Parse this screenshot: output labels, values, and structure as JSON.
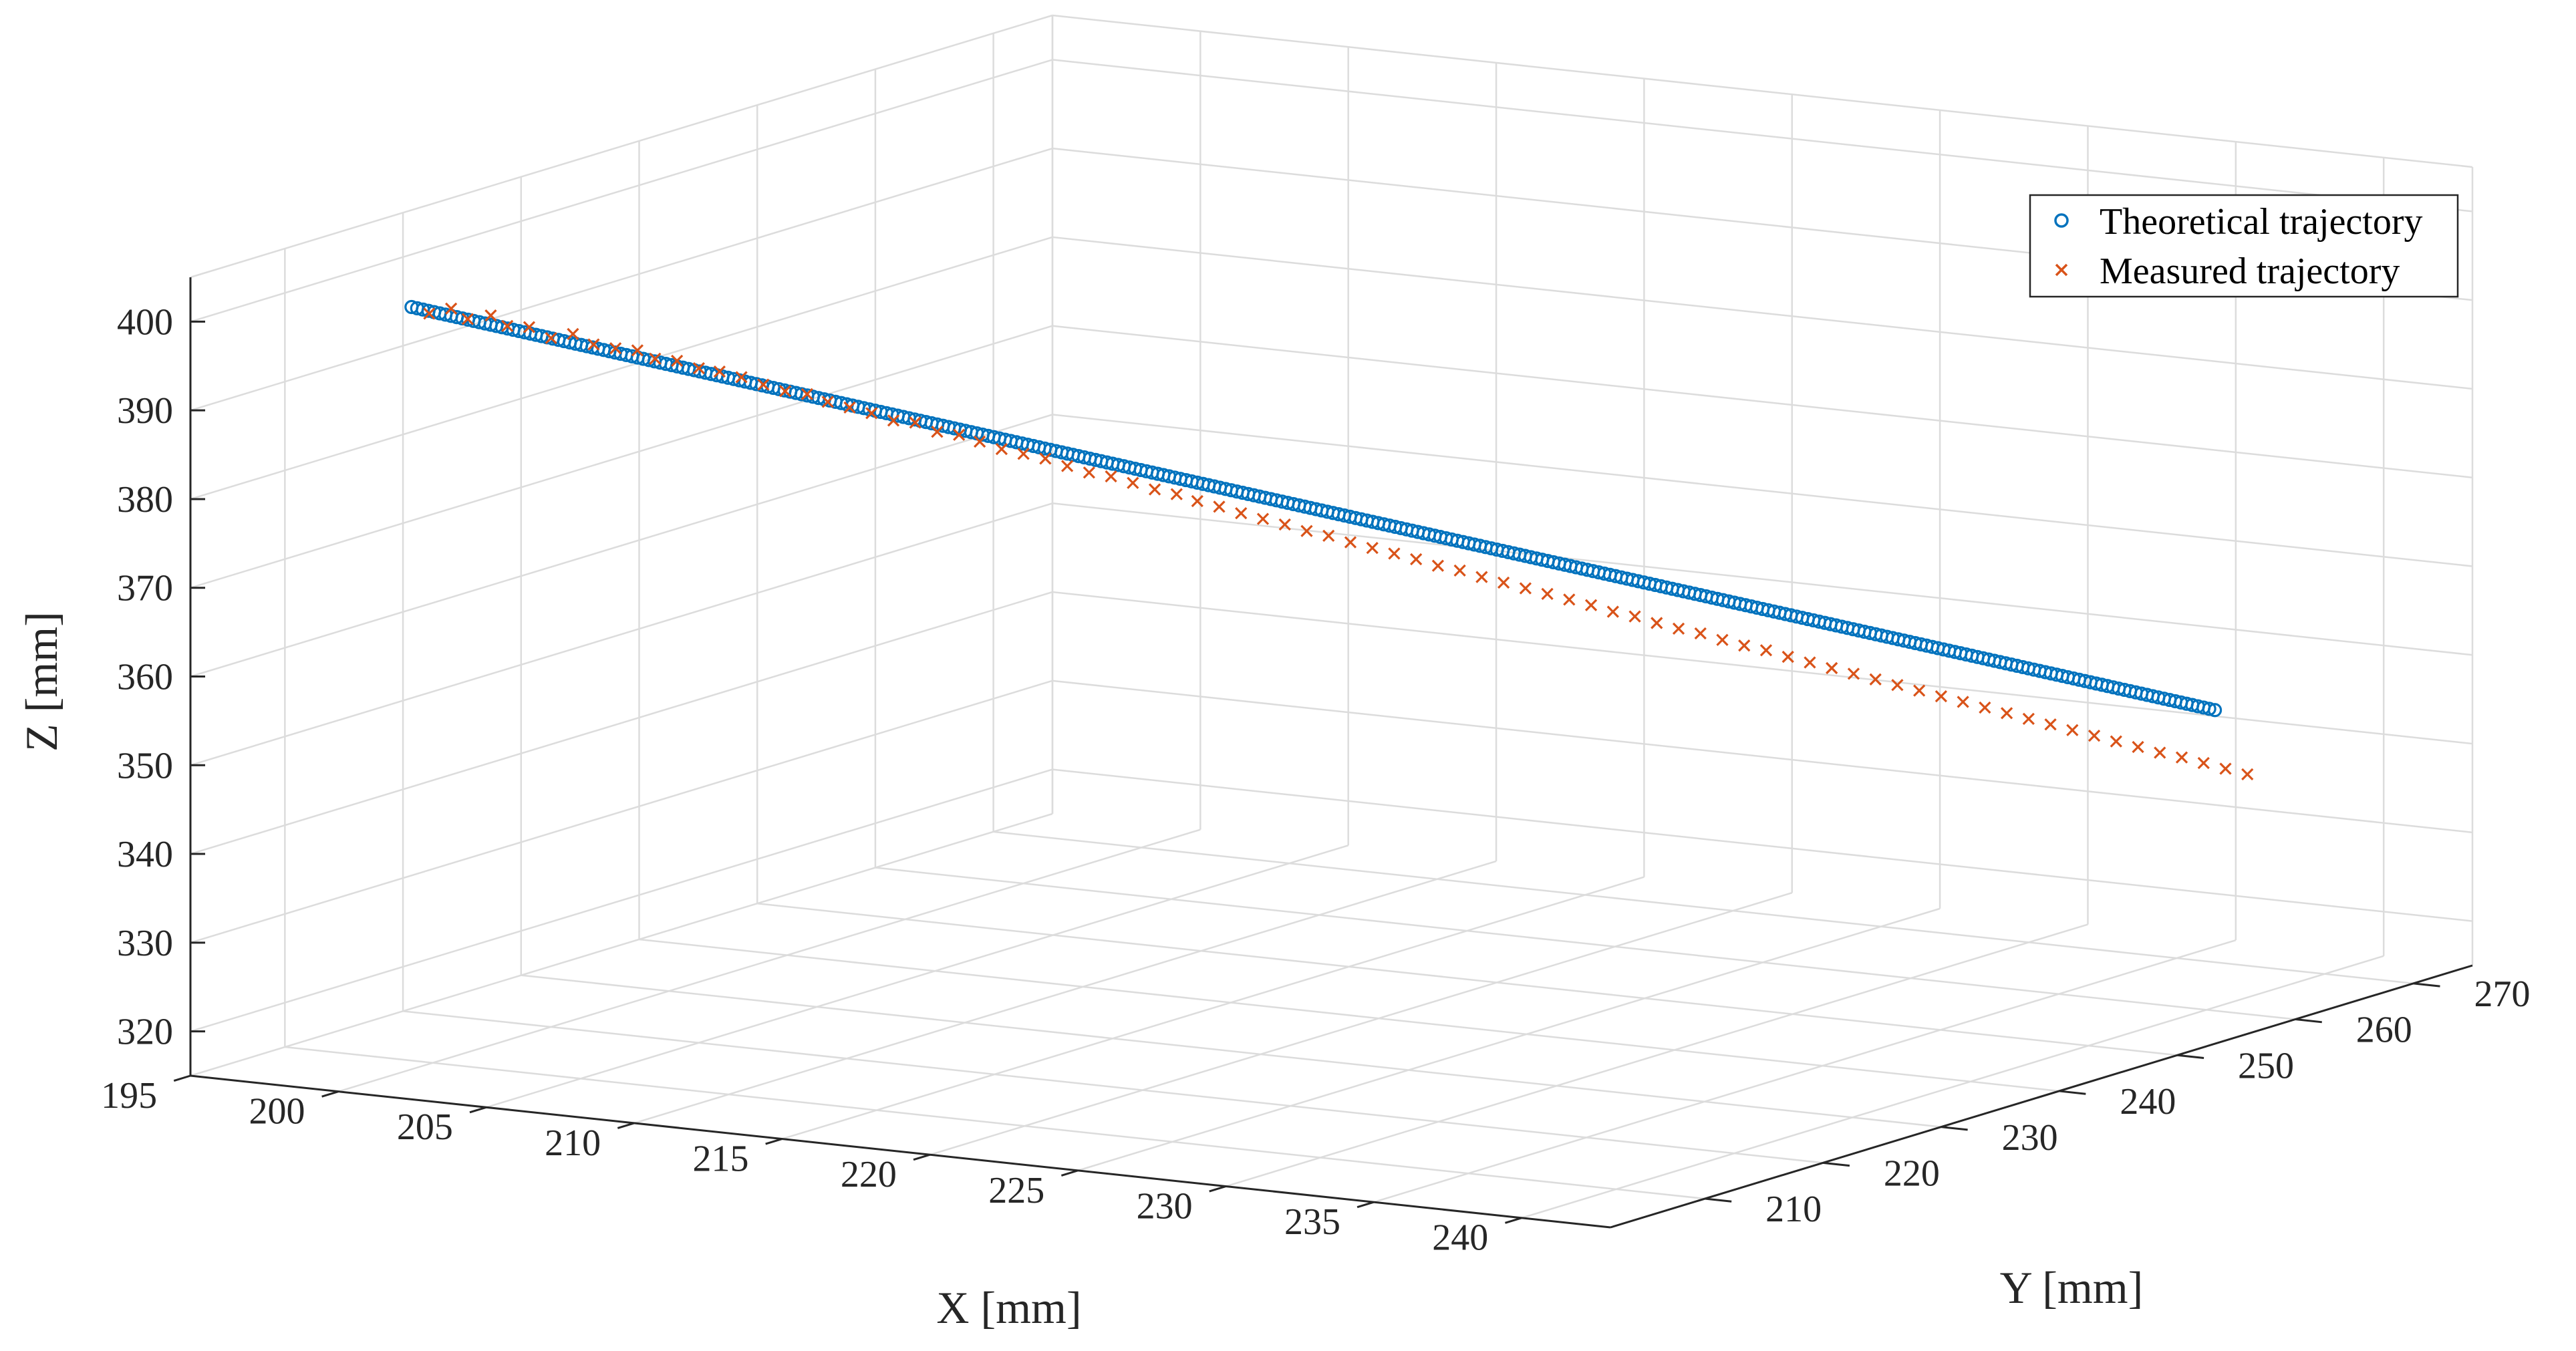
{
  "chart_data": {
    "type": "scatter",
    "title": "",
    "xlabel": "X [mm]",
    "ylabel": "Y [mm]",
    "zlabel": "Z [mm]",
    "xlim": [
      195,
      243
    ],
    "ylim": [
      202,
      275
    ],
    "zlim": [
      315,
      405
    ],
    "x_ticks": [
      195,
      200,
      205,
      210,
      215,
      220,
      225,
      230,
      235,
      240
    ],
    "y_ticks": [
      210,
      220,
      230,
      240,
      250,
      260,
      270
    ],
    "z_ticks": [
      320,
      330,
      340,
      350,
      360,
      370,
      380,
      390,
      400
    ],
    "grid": true,
    "legend_position": "top-right",
    "series_colors": {
      "theoretical": "#0072BD",
      "measured": "#D95319"
    },
    "series": [
      {
        "name": "Theoretical trajectory",
        "marker": "circle",
        "line": {
          "start": [
            199.4,
            209.7,
            400.1
          ],
          "end": [
            240.8,
            258.7,
            349.6
          ],
          "n_points": 320
        }
      },
      {
        "name": "Measured trajectory",
        "marker": "x",
        "points": [
          [
            199.8,
            210.2,
            399.3
          ],
          [
            200.3,
            210.8,
            399.8
          ],
          [
            200.7,
            211.2,
            398.6
          ],
          [
            201.2,
            211.9,
            398.9
          ],
          [
            201.6,
            212.3,
            397.7
          ],
          [
            202.1,
            212.9,
            397.5
          ],
          [
            202.6,
            213.5,
            396.2
          ],
          [
            203.1,
            214.1,
            396.6
          ],
          [
            203.6,
            214.6,
            395.4
          ],
          [
            204.1,
            215.2,
            394.9
          ],
          [
            204.6,
            215.8,
            394.6
          ],
          [
            205.0,
            216.3,
            393.6
          ],
          [
            205.5,
            216.9,
            393.3
          ],
          [
            206.0,
            217.5,
            392.4
          ],
          [
            206.5,
            218.0,
            392.0
          ],
          [
            207.0,
            218.6,
            391.3
          ],
          [
            207.5,
            219.2,
            390.4
          ],
          [
            208.0,
            219.8,
            389.6
          ],
          [
            208.5,
            220.4,
            389.2
          ],
          [
            209.0,
            220.9,
            388.3
          ],
          [
            209.5,
            221.5,
            387.6
          ],
          [
            210.0,
            222.1,
            386.9
          ],
          [
            210.5,
            222.7,
            386.0
          ],
          [
            211.0,
            223.3,
            385.7
          ],
          [
            211.5,
            223.9,
            384.6
          ],
          [
            212.0,
            224.5,
            384.2
          ],
          [
            212.5,
            225.0,
            383.4
          ],
          [
            213.0,
            225.6,
            382.5
          ],
          [
            213.5,
            226.2,
            381.9
          ],
          [
            214.0,
            226.8,
            381.3
          ],
          [
            214.5,
            227.4,
            380.4
          ],
          [
            215.0,
            228.0,
            379.6
          ],
          [
            215.5,
            228.6,
            379.1
          ],
          [
            216.0,
            229.2,
            378.3
          ],
          [
            216.5,
            229.8,
            377.5
          ],
          [
            217.0,
            230.4,
            376.9
          ],
          [
            217.5,
            230.9,
            376.1
          ],
          [
            218.0,
            231.5,
            375.4
          ],
          [
            218.5,
            232.1,
            374.6
          ],
          [
            219.0,
            232.7,
            373.9
          ],
          [
            219.5,
            233.3,
            373.2
          ],
          [
            220.0,
            233.9,
            372.4
          ],
          [
            220.5,
            234.5,
            371.8
          ],
          [
            221.0,
            235.1,
            371.0
          ],
          [
            221.5,
            235.7,
            370.3
          ],
          [
            222.0,
            236.3,
            369.6
          ],
          [
            222.5,
            236.9,
            368.9
          ],
          [
            223.0,
            237.5,
            368.1
          ],
          [
            223.5,
            238.1,
            367.5
          ],
          [
            224.0,
            238.7,
            366.7
          ],
          [
            224.5,
            239.3,
            366.0
          ],
          [
            225.0,
            239.9,
            365.3
          ],
          [
            225.5,
            240.5,
            364.6
          ],
          [
            226.0,
            241.1,
            363.9
          ],
          [
            226.5,
            241.7,
            363.2
          ],
          [
            227.0,
            242.3,
            362.4
          ],
          [
            227.5,
            242.9,
            361.8
          ],
          [
            228.0,
            243.5,
            361.0
          ],
          [
            228.5,
            244.1,
            360.3
          ],
          [
            229.0,
            244.7,
            359.7
          ],
          [
            229.5,
            245.3,
            358.9
          ],
          [
            230.0,
            245.9,
            358.2
          ],
          [
            230.5,
            246.5,
            357.6
          ],
          [
            231.0,
            247.1,
            356.8
          ],
          [
            231.5,
            247.7,
            356.1
          ],
          [
            232.0,
            248.3,
            355.4
          ],
          [
            232.5,
            248.9,
            354.7
          ],
          [
            233.0,
            249.5,
            354.0
          ],
          [
            233.5,
            250.1,
            353.3
          ],
          [
            234.0,
            250.7,
            352.6
          ],
          [
            234.5,
            251.3,
            351.9
          ],
          [
            235.0,
            251.9,
            351.2
          ],
          [
            235.5,
            252.5,
            350.5
          ],
          [
            236.0,
            253.1,
            349.8
          ],
          [
            236.5,
            253.7,
            349.1
          ],
          [
            237.0,
            254.3,
            348.4
          ],
          [
            237.5,
            254.9,
            347.7
          ],
          [
            238.0,
            255.5,
            347.0
          ],
          [
            238.5,
            256.1,
            346.3
          ],
          [
            239.0,
            256.7,
            345.6
          ],
          [
            239.5,
            257.3,
            344.9
          ],
          [
            240.0,
            257.9,
            344.3
          ],
          [
            240.5,
            258.5,
            343.6
          ],
          [
            241.0,
            259.1,
            342.9
          ],
          [
            241.5,
            259.7,
            342.2
          ]
        ]
      }
    ]
  }
}
